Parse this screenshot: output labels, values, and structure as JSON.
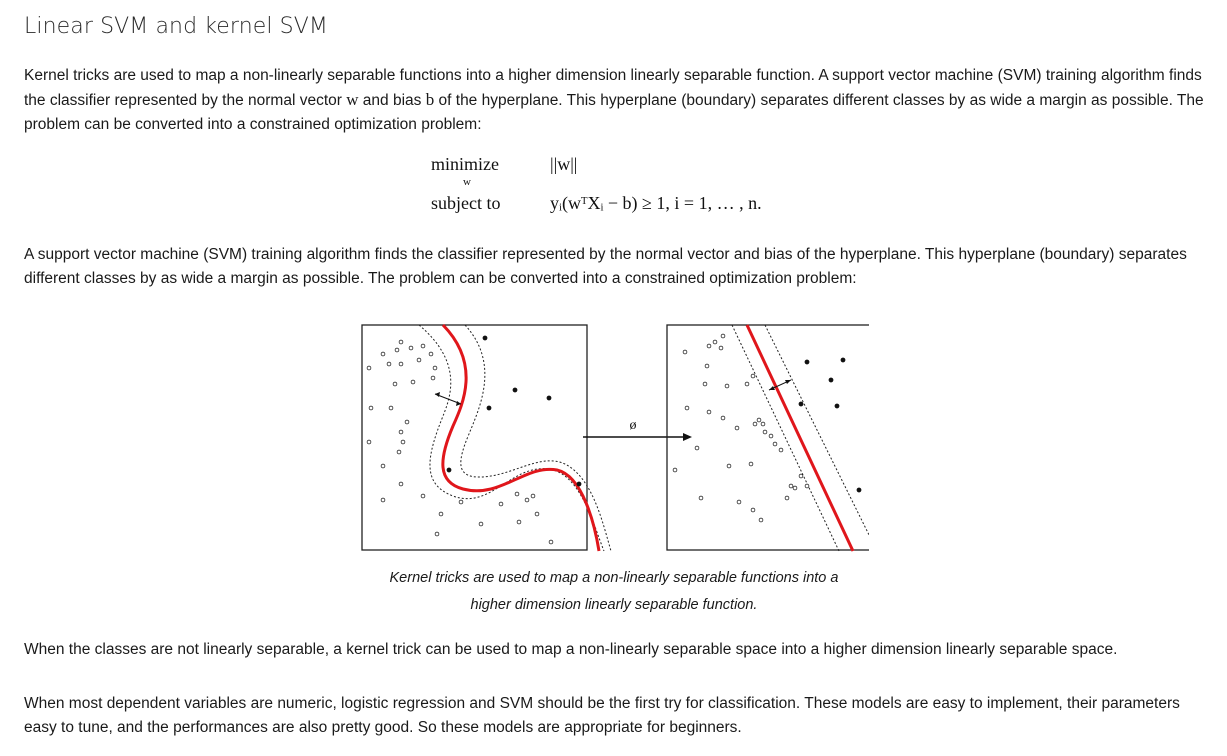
{
  "title": "Linear SVM and kernel SVM",
  "paragraph1": {
    "part1": "Kernel tricks are used to map a non-linearly separable functions into a higher dimension linearly separable function. A support vector machine (SVM) training algorithm finds the classifier represented by the normal vector ",
    "w": "w",
    "part2": " and bias ",
    "b": "b",
    "part3": " of the hyperplane. This hyperplane (boundary) separates different classes by as wide a margin as possible. The problem can be converted into a constrained optimization problem:"
  },
  "math": {
    "minimize_label": "minimize",
    "minimize_sub": "w",
    "objective": "||w||",
    "subject_label": "subject to",
    "constraint": "yᵢ(wᵀXᵢ − b) ≥ 1,  i = 1, … , n."
  },
  "paragraph2": "A support vector machine (SVM) training algorithm finds the classifier represented by the normal vector  and bias  of the hyperplane. This hyperplane (boundary) separates different classes by as wide a margin as possible. The problem can be converted into a constrained optimization problem:",
  "figure": {
    "map_symbol": "ø",
    "colors": {
      "boundary": "#e0161b",
      "points": "#111111",
      "frame": "#222222"
    }
  },
  "caption": {
    "line1": "Kernel tricks are used to map a non-linearly separable functions into a",
    "line2": "higher dimension linearly separable function."
  },
  "paragraph3": "When the classes are not linearly separable, a kernel trick can be used to map a non-linearly separable space into a higher dimension linearly separable space.",
  "paragraph4": "When most dependent variables are numeric, logistic regression and SVM should be the first try for classification. These models are easy to implement, their parameters easy to tune, and the performances are also pretty good. So these models are appropriate for beginners."
}
